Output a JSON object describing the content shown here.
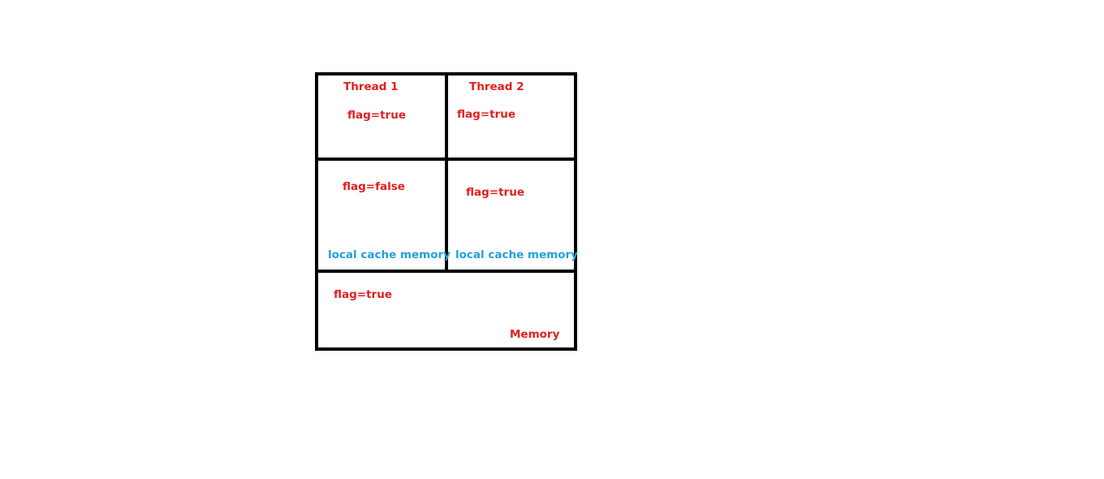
{
  "colors": {
    "label_red": "#e0201f",
    "label_blue": "#1fa1dc",
    "border": "#000000",
    "background": "#ffffff"
  },
  "thread1": {
    "title": "Thread 1",
    "value": "flag=true"
  },
  "thread2": {
    "title": "Thread 2",
    "value": "flag=true"
  },
  "cache1": {
    "value": "flag=false",
    "label": "local cache memory"
  },
  "cache2": {
    "value": "flag=true",
    "label": "local cache memory"
  },
  "memory": {
    "value": "flag=true",
    "label": "Memory"
  }
}
